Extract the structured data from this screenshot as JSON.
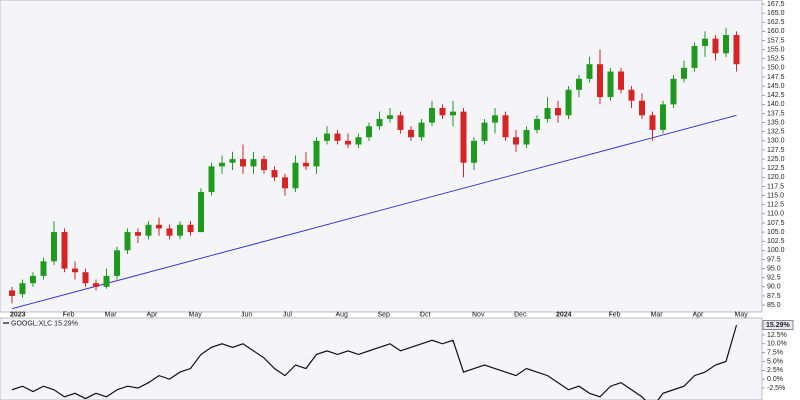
{
  "chart_data": [
    {
      "type": "candlestick",
      "categories": [
        "2023",
        null,
        null,
        null,
        null,
        "Feb",
        null,
        null,
        null,
        "Mar",
        null,
        null,
        null,
        "Apr",
        null,
        null,
        null,
        "May",
        null,
        null,
        null,
        null,
        "Jun",
        null,
        null,
        null,
        "Jul",
        null,
        null,
        null,
        null,
        "Aug",
        null,
        null,
        null,
        "Sep",
        null,
        null,
        null,
        "Oct",
        null,
        null,
        null,
        null,
        "Nov",
        null,
        null,
        null,
        "Dec",
        null,
        null,
        null,
        "2024",
        null,
        null,
        null,
        null,
        "Feb",
        null,
        null,
        null,
        "Mar",
        null,
        null,
        null,
        "Apr",
        null,
        null,
        null,
        "May"
      ],
      "open": [
        89,
        88,
        91,
        93,
        97,
        105,
        95,
        94,
        91,
        90,
        93,
        100,
        105,
        104,
        107,
        106,
        104,
        107,
        105,
        116,
        123,
        124,
        125,
        123,
        125,
        122,
        120,
        117,
        124,
        123,
        130,
        132,
        130,
        129,
        131,
        134,
        136,
        137,
        133,
        131,
        135,
        139,
        137,
        138,
        124,
        130,
        135,
        137,
        131,
        129,
        133,
        136,
        139,
        137,
        144,
        147,
        151,
        142,
        149,
        144,
        141,
        137,
        133,
        140,
        147,
        150,
        156,
        158,
        154,
        159
      ],
      "high": [
        90,
        92,
        94,
        98,
        108,
        106,
        97,
        95,
        92,
        95,
        101,
        106,
        106,
        108,
        109,
        107,
        108,
        108,
        117,
        124,
        126,
        127,
        129,
        127,
        126,
        123,
        121,
        126,
        127,
        131,
        134,
        133,
        132,
        132,
        135,
        138,
        139,
        138,
        134,
        136,
        141,
        140,
        141,
        139,
        131,
        136,
        139,
        138,
        133,
        134,
        137,
        142,
        141,
        145,
        148,
        153,
        155,
        150,
        150,
        145,
        143,
        138,
        141,
        148,
        152,
        157,
        160,
        159,
        161,
        160
      ],
      "low": [
        85.5,
        87,
        90,
        92,
        96,
        94,
        92,
        90,
        89,
        89.5,
        92,
        99,
        102,
        103,
        104,
        103,
        103,
        104,
        105,
        115,
        121,
        122,
        121,
        121,
        121,
        119,
        115,
        116,
        122,
        121,
        129,
        129,
        128,
        128,
        130,
        133,
        135,
        132,
        130,
        130,
        134,
        136,
        134,
        120,
        122,
        129,
        132,
        130,
        127,
        128,
        132,
        135,
        135,
        136,
        142,
        146,
        140,
        141,
        143,
        139,
        136,
        130,
        132,
        139,
        146,
        149,
        153,
        152,
        153,
        149
      ],
      "close": [
        87.5,
        91,
        93,
        97,
        105,
        95,
        94,
        91,
        90,
        93,
        100,
        105,
        104,
        107,
        106,
        104,
        107,
        105,
        116,
        123,
        124,
        125,
        123,
        125,
        122,
        120,
        117,
        124,
        123,
        130,
        132,
        130,
        129,
        131,
        134,
        136,
        137,
        133,
        131,
        135,
        139,
        137,
        138,
        124,
        130,
        135,
        137,
        131,
        129,
        133,
        136,
        139,
        137,
        144,
        147,
        151,
        142,
        149,
        144,
        141,
        137,
        133,
        140,
        147,
        150,
        156,
        158,
        154,
        159,
        151
      ],
      "up_color": "#1f9a1f",
      "down_color": "#d42424",
      "trendline": {
        "color": "#2a2acc",
        "values": [
          84,
          137
        ]
      },
      "ylim": [
        83.1,
        168.6
      ],
      "yticks": [
        {
          "value": 85,
          "label": "85.0"
        },
        87.5,
        {
          "value": 90,
          "label": "90.0"
        },
        92.5,
        {
          "value": 95,
          "label": "95.0"
        },
        97.5,
        {
          "value": 100,
          "label": "100.0"
        },
        102.5,
        {
          "value": 105,
          "label": "105.0"
        },
        107.5,
        {
          "value": 110,
          "label": "110.0"
        },
        112.5,
        {
          "value": 115,
          "label": "115.0"
        },
        117.5,
        {
          "value": 120,
          "label": "120.0"
        },
        122.5,
        {
          "value": 125,
          "label": "125.0"
        },
        127.5,
        {
          "value": 130,
          "label": "130.0"
        },
        132.5,
        {
          "value": 135,
          "label": "135.0"
        },
        137.5,
        {
          "value": 140,
          "label": "140.0"
        },
        142.5,
        {
          "value": 145,
          "label": "145.0"
        },
        147.5,
        {
          "value": 150,
          "label": "150.0"
        },
        152.5,
        {
          "value": 155,
          "label": "155.0"
        },
        157.5,
        {
          "value": 160,
          "label": "160.0"
        },
        162.5,
        {
          "value": 165,
          "label": "165.0"
        },
        167.5
      ]
    },
    {
      "type": "line",
      "series": [
        {
          "name": "GOOGL:XLC 15.29%",
          "color": "#111111",
          "values": [
            -3,
            -2,
            -3.5,
            -2,
            -3,
            -5,
            -4,
            -5.5,
            -4,
            -5,
            -3,
            -2,
            -2.5,
            -1,
            1,
            0,
            2,
            3,
            7,
            9,
            10,
            9,
            10,
            8,
            6,
            3,
            1,
            4,
            3,
            7,
            8,
            7,
            8,
            7,
            8,
            9,
            10,
            8,
            9,
            10,
            11,
            10,
            11,
            2,
            3,
            4,
            3,
            2,
            1,
            3,
            2,
            1,
            -1,
            -3,
            -2,
            -4,
            -5,
            -2,
            -1,
            -3,
            -5,
            -8,
            -4,
            -3,
            -2,
            1,
            2,
            4,
            5,
            15.29
          ],
          "value_labels": [
            null,
            null,
            null,
            null,
            null,
            null,
            null,
            null,
            null,
            null,
            null,
            null,
            null,
            null,
            null,
            null,
            null,
            null,
            null,
            null,
            null,
            null,
            null,
            null,
            null,
            null,
            null,
            null,
            null,
            null,
            null,
            null,
            null,
            null,
            null,
            null,
            null,
            null,
            null,
            null,
            null,
            null,
            null,
            null,
            null,
            null,
            null,
            null,
            null,
            null,
            null,
            null,
            null,
            null,
            null,
            null,
            null,
            null,
            null,
            null,
            null,
            null,
            null,
            null,
            null,
            null,
            null,
            null,
            null,
            "15.29%"
          ]
        }
      ],
      "ylim": [
        -5.9,
        17.3
      ],
      "yticks": [
        {
          "value": 12.5,
          "label": "12.5%"
        },
        {
          "value": 10,
          "label": "10.0%"
        },
        {
          "value": 7.5,
          "label": "7.5%"
        },
        {
          "value": 5,
          "label": "5.0%"
        },
        {
          "value": 2.5,
          "label": "2.5%"
        },
        {
          "value": 0,
          "label": "0.0%"
        },
        {
          "value": -2.5,
          "label": "-2.5%"
        }
      ]
    }
  ]
}
